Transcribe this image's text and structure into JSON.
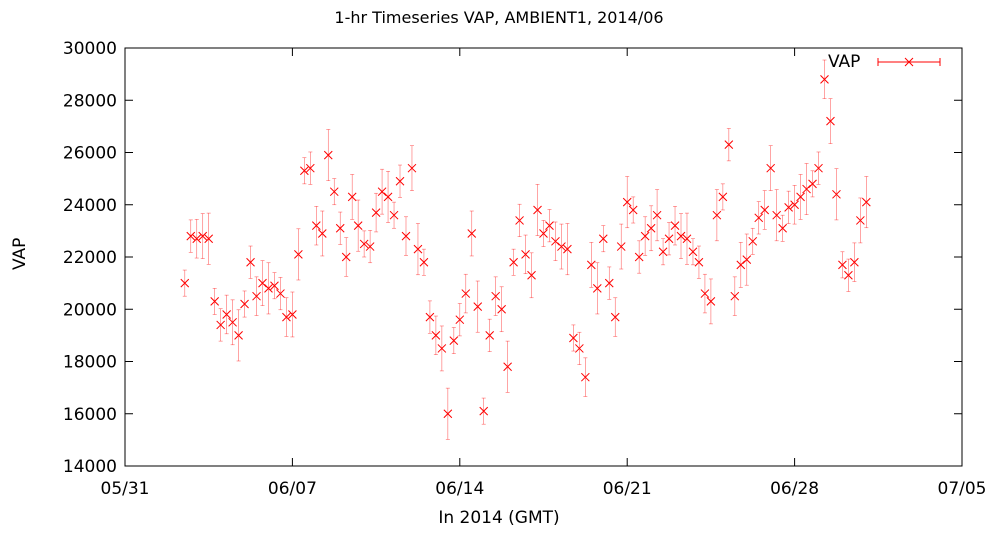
{
  "chart_data": {
    "type": "scatter",
    "title": "1-hr Timeseries VAP, AMBIENT1, 2014/06",
    "xlabel": "In 2014 (GMT)",
    "ylabel": "VAP",
    "legend": {
      "label": "VAP",
      "position": "top-right"
    },
    "color": "#ff0000",
    "marker": "x",
    "error_bars": true,
    "x_ticks": [
      "05/31",
      "06/07",
      "06/14",
      "06/21",
      "06/28",
      "07/05"
    ],
    "xlim": [
      "2014-05-31",
      "2014-07-05"
    ],
    "ylim": [
      14000,
      30000
    ],
    "y_ticks": [
      14000,
      16000,
      18000,
      20000,
      22000,
      24000,
      26000,
      28000,
      30000
    ],
    "series": [
      {
        "name": "VAP",
        "x": [
          "2014-06-02 12:00",
          "2014-06-02 18:00",
          "2014-06-03 00:00",
          "2014-06-03 06:00",
          "2014-06-03 12:00",
          "2014-06-03 18:00",
          "2014-06-04 00:00",
          "2014-06-04 06:00",
          "2014-06-04 12:00",
          "2014-06-04 18:00",
          "2014-06-05 00:00",
          "2014-06-05 06:00",
          "2014-06-05 12:00",
          "2014-06-05 18:00",
          "2014-06-06 00:00",
          "2014-06-06 06:00",
          "2014-06-06 12:00",
          "2014-06-06 18:00",
          "2014-06-07 00:00",
          "2014-06-07 06:00",
          "2014-06-07 12:00",
          "2014-06-07 18:00",
          "2014-06-08 00:00",
          "2014-06-08 06:00",
          "2014-06-08 12:00",
          "2014-06-08 18:00",
          "2014-06-09 00:00",
          "2014-06-09 06:00",
          "2014-06-09 12:00",
          "2014-06-09 18:00",
          "2014-06-10 00:00",
          "2014-06-10 06:00",
          "2014-06-10 12:00",
          "2014-06-10 18:00",
          "2014-06-11 00:00",
          "2014-06-11 06:00",
          "2014-06-11 12:00",
          "2014-06-11 18:00",
          "2014-06-12 00:00",
          "2014-06-12 06:00",
          "2014-06-12 12:00",
          "2014-06-12 18:00",
          "2014-06-13 00:00",
          "2014-06-13 06:00",
          "2014-06-13 12:00",
          "2014-06-13 18:00",
          "2014-06-14 00:00",
          "2014-06-14 06:00",
          "2014-06-14 12:00",
          "2014-06-14 18:00",
          "2014-06-15 00:00",
          "2014-06-15 06:00",
          "2014-06-15 12:00",
          "2014-06-15 18:00",
          "2014-06-16 00:00",
          "2014-06-16 06:00",
          "2014-06-16 12:00",
          "2014-06-16 18:00",
          "2014-06-17 00:00",
          "2014-06-17 06:00",
          "2014-06-17 12:00",
          "2014-06-17 18:00",
          "2014-06-18 00:00",
          "2014-06-18 06:00",
          "2014-06-18 12:00",
          "2014-06-18 18:00",
          "2014-06-19 00:00",
          "2014-06-19 06:00",
          "2014-06-19 12:00",
          "2014-06-19 18:00",
          "2014-06-20 00:00",
          "2014-06-20 06:00",
          "2014-06-20 12:00",
          "2014-06-20 18:00",
          "2014-06-21 00:00",
          "2014-06-21 06:00",
          "2014-06-21 12:00",
          "2014-06-21 18:00",
          "2014-06-22 00:00",
          "2014-06-22 06:00",
          "2014-06-22 12:00",
          "2014-06-22 18:00",
          "2014-06-23 00:00",
          "2014-06-23 06:00",
          "2014-06-23 12:00",
          "2014-06-23 18:00",
          "2014-06-24 00:00",
          "2014-06-24 06:00",
          "2014-06-24 12:00",
          "2014-06-24 18:00",
          "2014-06-25 00:00",
          "2014-06-25 06:00",
          "2014-06-25 12:00",
          "2014-06-25 18:00",
          "2014-06-26 00:00",
          "2014-06-26 06:00",
          "2014-06-26 12:00",
          "2014-06-26 18:00",
          "2014-06-27 00:00",
          "2014-06-27 06:00",
          "2014-06-27 12:00",
          "2014-06-27 18:00",
          "2014-06-28 00:00",
          "2014-06-28 06:00",
          "2014-06-28 12:00",
          "2014-06-28 18:00",
          "2014-06-29 00:00",
          "2014-06-29 06:00",
          "2014-06-29 12:00",
          "2014-06-29 18:00",
          "2014-06-30 00:00",
          "2014-06-30 06:00",
          "2014-06-30 12:00",
          "2014-06-30 18:00",
          "2014-07-01 00:00"
        ],
        "y": [
          21000,
          22800,
          22700,
          22800,
          22700,
          20300,
          19400,
          19800,
          19500,
          19000,
          20200,
          21800,
          20500,
          21000,
          20800,
          20900,
          20600,
          19700,
          19800,
          22100,
          25300,
          25400,
          23200,
          22900,
          25900,
          24500,
          23100,
          22000,
          24300,
          23200,
          22500,
          22400,
          23700,
          24500,
          24300,
          23600,
          24900,
          22800,
          25400,
          22300,
          21800,
          19700,
          19000,
          18500,
          16000,
          18800,
          19600,
          20600,
          22900,
          20100,
          16100,
          19000,
          20500,
          20000,
          17800,
          21800,
          23400,
          22100,
          21300,
          23800,
          22900,
          23200,
          22600,
          22400,
          22300,
          18900,
          18500,
          17400,
          21700,
          20800,
          22700,
          21000,
          19700,
          22400,
          24100,
          23800,
          22000,
          22800,
          23100,
          23600,
          22200,
          22700,
          23200,
          22800,
          22700,
          22200,
          21800,
          20600,
          20300,
          23600,
          24300,
          26300,
          20500,
          21700,
          21900,
          22600,
          23500,
          23800,
          25400,
          23600,
          23100,
          23900,
          24000,
          24300,
          24600,
          24800,
          25400,
          28800,
          27200,
          24400,
          21700,
          21300,
          21800,
          23400,
          24100
        ]
      }
    ]
  }
}
